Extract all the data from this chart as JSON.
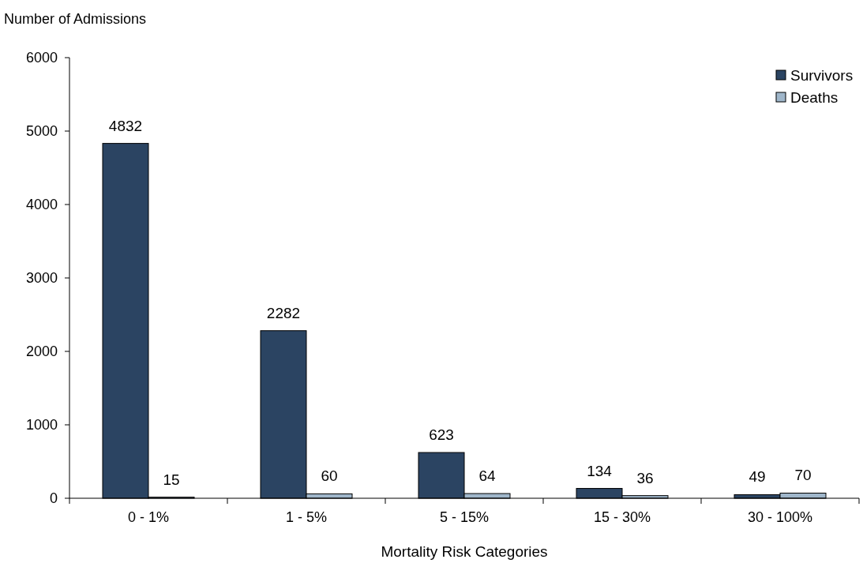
{
  "chart_data": {
    "type": "bar",
    "ylabel": "Number of Admissions",
    "xlabel": "Mortality Risk Categories",
    "categories": [
      "0 - 1%",
      "1 - 5%",
      "5 - 15%",
      "15 - 30%",
      "30 - 100%"
    ],
    "series": [
      {
        "name": "Survivors",
        "color": "#2b4462",
        "values": [
          4832,
          2282,
          623,
          134,
          49
        ]
      },
      {
        "name": "Deaths",
        "color": "#9fb6ca",
        "values": [
          15,
          60,
          64,
          36,
          70
        ]
      }
    ],
    "ylim": [
      0,
      6000
    ],
    "yticks": [
      0,
      1000,
      2000,
      3000,
      4000,
      5000,
      6000
    ],
    "data_labels": true,
    "legend": "top right",
    "grid": false
  }
}
